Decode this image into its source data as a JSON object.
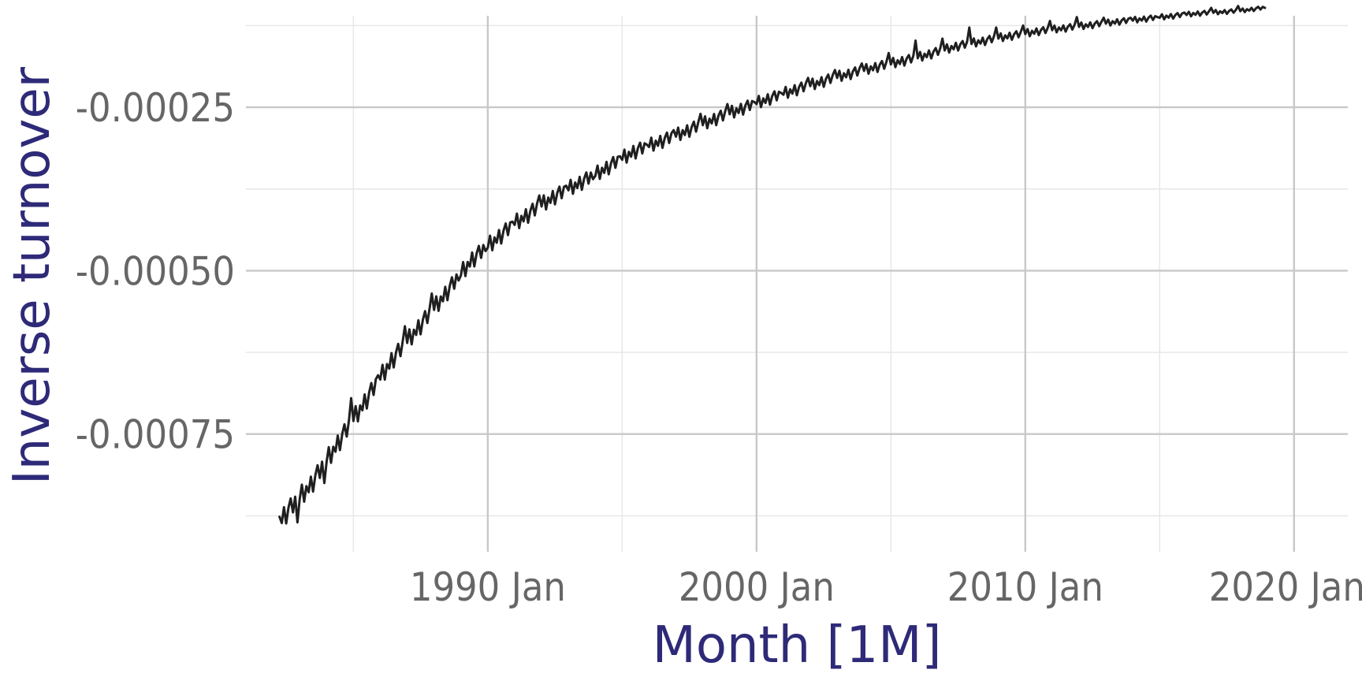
{
  "chart_data": {
    "type": "line",
    "title": "",
    "xlabel": "Month [1M]",
    "ylabel": "Inverse turnover",
    "x_range": [
      "1982-04",
      "2018-12"
    ],
    "xlim": [
      "1981-01",
      "2022-01"
    ],
    "ylim": [
      -0.00093,
      -0.00011
    ],
    "x_major_ticks": [
      "1990-01",
      "2000-01",
      "2010-01",
      "2020-01"
    ],
    "x_minor_ticks": [
      "1985-01",
      "1995-01",
      "2005-01",
      "2015-01"
    ],
    "x_tick_labels": [
      "1990 Jan",
      "2000 Jan",
      "2010 Jan",
      "2020 Jan"
    ],
    "y_major_ticks": [
      -0.00025,
      -0.0005,
      -0.00075
    ],
    "y_minor_ticks": [
      -0.000125,
      -0.000375,
      -0.000625,
      -0.000875
    ],
    "y_tick_labels": [
      "-0.00025",
      "-0.00050",
      "-0.00075"
    ],
    "grid": true,
    "legend": "none",
    "series": [
      {
        "trend": [
          [
            "1982-04",
            -0.000885
          ],
          [
            "1983-06",
            -0.00083
          ],
          [
            "1985-01",
            -0.00073
          ],
          [
            "1986-06",
            -0.00064
          ],
          [
            "1988-01",
            -0.00056
          ],
          [
            "1989-06",
            -0.000485
          ],
          [
            "1991-01",
            -0.00043
          ],
          [
            "1992-06",
            -0.00039
          ],
          [
            "1994-01",
            -0.000355
          ],
          [
            "1995-06",
            -0.00032
          ],
          [
            "1997-01",
            -0.000295
          ],
          [
            "1998-06",
            -0.00027
          ],
          [
            "2000-01",
            -0.000245
          ],
          [
            "2001-06",
            -0.000225
          ],
          [
            "2003-01",
            -0.000205
          ],
          [
            "2004-06",
            -0.00019
          ],
          [
            "2006-01",
            -0.000175
          ],
          [
            "2007-06",
            -0.000158
          ],
          [
            "2009-01",
            -0.000145
          ],
          [
            "2010-06",
            -0.000135
          ],
          [
            "2012-01",
            -0.000127
          ],
          [
            "2013-06",
            -0.00012
          ],
          [
            "2015-01",
            -0.000113
          ],
          [
            "2016-06",
            -0.000107
          ],
          [
            "2018-01",
            -0.000103
          ],
          [
            "2018-12",
            -9.8e-05
          ]
        ],
        "december_spike": [
          [
            "1982-12",
            -0.000885
          ],
          [
            "1983-12",
            -0.000825
          ],
          [
            "1984-12",
            -0.000695
          ],
          [
            "1985-12",
            -0.00066
          ],
          [
            "1986-12",
            -0.000585
          ],
          [
            "1987-12",
            -0.000535
          ],
          [
            "1988-12",
            -0.000515
          ],
          [
            "1989-12",
            -0.00047
          ],
          [
            "1990-12",
            -0.000425
          ],
          [
            "1991-12",
            -0.000385
          ],
          [
            "1992-12",
            -0.00037
          ],
          [
            "1993-12",
            -0.00036
          ],
          [
            "1994-12",
            -0.000325
          ],
          [
            "1995-12",
            -0.000307
          ],
          [
            "1996-12",
            -0.000285
          ],
          [
            "1997-12",
            -0.00026
          ],
          [
            "1998-12",
            -0.000245
          ],
          [
            "1999-12",
            -0.000242
          ],
          [
            "2000-12",
            -0.000228
          ],
          [
            "2001-12",
            -0.000205
          ],
          [
            "2002-12",
            -0.000193
          ],
          [
            "2003-12",
            -0.000183
          ],
          [
            "2004-12",
            -0.000167
          ],
          [
            "2005-12",
            -0.000148
          ],
          [
            "2006-12",
            -0.000145
          ],
          [
            "2007-12",
            -0.000128
          ],
          [
            "2008-12",
            -0.000128
          ],
          [
            "2009-12",
            -0.000125
          ],
          [
            "2010-12",
            -0.000118
          ],
          [
            "2011-12",
            -0.000112
          ],
          [
            "2012-12",
            -0.000113
          ],
          [
            "2013-12",
            -0.000113
          ],
          [
            "2014-12",
            -0.000112
          ],
          [
            "2015-12",
            -0.000105
          ],
          [
            "2016-12",
            -9.8e-05
          ],
          [
            "2017-12",
            -9.5e-05
          ],
          [
            "2018-12",
            -9.8e-05
          ]
        ]
      }
    ]
  }
}
